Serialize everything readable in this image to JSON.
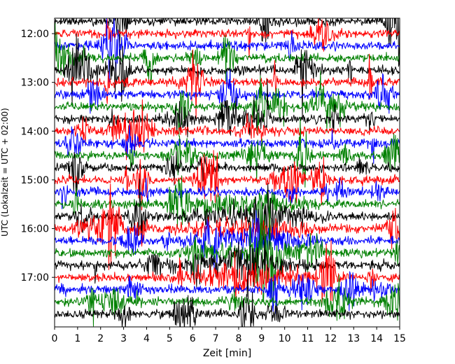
{
  "chart_data": {
    "type": "line",
    "title": "",
    "xlabel": "Zeit  [min]",
    "ylabel": "UTC (Lokalzeit = UTC + 02:00)",
    "xlim": [
      0,
      15
    ],
    "x_ticks": [
      "0",
      "1",
      "2",
      "3",
      "4",
      "5",
      "6",
      "7",
      "8",
      "9",
      "10",
      "11",
      "12",
      "13",
      "14",
      "15"
    ],
    "y_ticks": [
      "12:00",
      "13:00",
      "14:00",
      "15:00",
      "16:00",
      "17:00"
    ],
    "trace_start": "11:45",
    "trace_end": "17:45",
    "trace_interval_min": 15,
    "trace_colors": [
      "#000000",
      "#ff0000",
      "#0000ff",
      "#008000"
    ],
    "grid": false,
    "legend": "none"
  }
}
